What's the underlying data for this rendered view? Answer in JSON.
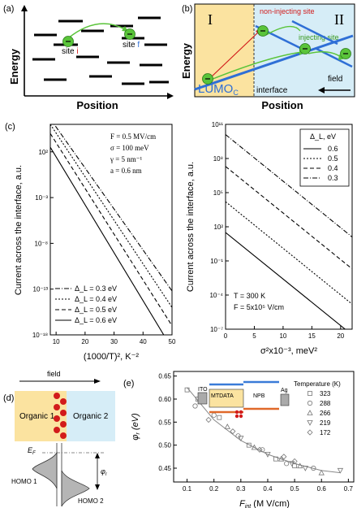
{
  "panels": {
    "a": {
      "label": "(a)",
      "xlabel": "Position",
      "ylabel": "Energy",
      "site_i": "site ",
      "site_i_sym": "i",
      "site_f": "site ",
      "site_f_sym": "f"
    },
    "b": {
      "label": "(b)",
      "xlabel": "Position",
      "ylabel": "Energy",
      "region_left": "I",
      "region_right": "II",
      "non_injecting": "non-injecting site",
      "injecting": "injecting site",
      "lumo": "LUMO",
      "lumo_sub": "C",
      "interface": "interface",
      "field": "field"
    },
    "c": {
      "label": "(c)",
      "left": {
        "ylabel": "Current across the interface, a.u.",
        "xlabel": "(1000/T)², K⁻²",
        "params": [
          "F = 0.5 MV/cm",
          "σ = 100 meV",
          "γ = 5 nm⁻¹",
          "a = 0.6 nm"
        ],
        "legend": [
          "Δ_L = 0.3 eV",
          "Δ_L = 0.4 eV",
          "Δ_L = 0.5 eV",
          "Δ_L = 0.6 eV"
        ],
        "yticks": [
          "10²",
          "10⁻³",
          "10⁻⁸",
          "10⁻¹³",
          "10⁻¹⁸"
        ],
        "xticks": [
          "10",
          "20",
          "30",
          "40",
          "50"
        ]
      },
      "right": {
        "ylabel": "Current across the interface, a.u.",
        "xlabel": "σ²x10⁻³, meV²",
        "legend_title": "Δ_L, eV",
        "legend": [
          "0.6",
          "0.5",
          "0.4",
          "0.3"
        ],
        "params": [
          "T = 300 K",
          "F = 5x10⁵ V/cm"
        ],
        "yticks": [
          "10¹¹",
          "10⁸",
          "10⁵",
          "10²",
          "10⁻¹",
          "10⁻⁴",
          "10⁻⁷"
        ],
        "xticks": [
          "0",
          "5",
          "10",
          "15",
          "20"
        ]
      }
    },
    "d": {
      "label": "(d)",
      "field": "field",
      "organic1": "Organic 1",
      "organic2": "Organic 2",
      "ef": "E_F",
      "homo1": "HOMO 1",
      "homo2": "HOMO 2",
      "phi": "φ_r"
    },
    "e": {
      "label": "(e)",
      "ylabel": "φ_r (eV)",
      "xlabel": "F_int (M V/cm)",
      "legend_title": "Temperature (K)",
      "temperatures": [
        "323",
        "288",
        "266",
        "219",
        "172"
      ],
      "device": [
        "ITO",
        "MTDATA",
        "NPB",
        "Ag"
      ],
      "yticks": [
        "0.45",
        "0.50",
        "0.55",
        "0.60",
        "0.65"
      ],
      "xticks": [
        "0.1",
        "0.2",
        "0.3",
        "0.4",
        "0.5",
        "0.6",
        "0.7"
      ]
    }
  },
  "colors": {
    "green": "#5ac43a",
    "blue": "#2f6fd6",
    "red": "#d21b1b",
    "yellow": "#fbe3a0",
    "lightblue": "#d6edf7",
    "orange": "#e0692a",
    "ptblue": "#3a7bd8"
  },
  "chart_data": [
    {
      "type": "line",
      "xlabel": "(1000/T)², K⁻²",
      "ylabel": "Current across the interface, a.u.",
      "xlim": [
        8,
        50
      ],
      "ylim_log10": [
        -18,
        5
      ],
      "series": [
        {
          "name": "Δ_L = 0.3 eV",
          "x": [
            8,
            50
          ],
          "log10_y": [
            5.6,
            -13.2
          ]
        },
        {
          "name": "Δ_L = 0.4 eV",
          "x": [
            8,
            50
          ],
          "log10_y": [
            5.0,
            -15.0
          ]
        },
        {
          "name": "Δ_L = 0.5 eV",
          "x": [
            8,
            50
          ],
          "log10_y": [
            4.0,
            -17.0
          ]
        },
        {
          "name": "Δ_L = 0.6 eV",
          "x": [
            8,
            50
          ],
          "log10_y": [
            2.5,
            -19.5
          ]
        }
      ]
    },
    {
      "type": "line",
      "xlabel": "σ²x10⁻³, meV²",
      "ylabel": "Current across the interface, a.u.",
      "xlim": [
        0,
        22
      ],
      "ylim_log10": [
        -7,
        11
      ],
      "series": [
        {
          "name": "0.6",
          "x": [
            0,
            22
          ],
          "log10_y": [
            1.5,
            -7.5
          ]
        },
        {
          "name": "0.5",
          "x": [
            0,
            22
          ],
          "log10_y": [
            4.2,
            -4.8
          ]
        },
        {
          "name": "0.4",
          "x": [
            0,
            22
          ],
          "log10_y": [
            7.3,
            -1.7
          ]
        },
        {
          "name": "0.3",
          "x": [
            0,
            22
          ],
          "log10_y": [
            10.1,
            1.1
          ]
        }
      ]
    },
    {
      "type": "scatter",
      "xlabel": "F_int (M V/cm)",
      "ylabel": "φ_r (eV)",
      "xlim": [
        0.05,
        0.72
      ],
      "ylim": [
        0.42,
        0.66
      ],
      "series": [
        {
          "name": "323",
          "x": [
            0.1,
            0.14,
            0.22,
            0.33,
            0.43,
            0.5
          ],
          "y": [
            0.62,
            0.6,
            0.56,
            0.5,
            0.47,
            0.455
          ]
        },
        {
          "name": "288",
          "x": [
            0.13,
            0.2,
            0.29,
            0.38,
            0.47,
            0.57
          ],
          "y": [
            0.585,
            0.565,
            0.52,
            0.49,
            0.46,
            0.45
          ]
        },
        {
          "name": "266",
          "x": [
            0.25,
            0.35,
            0.45,
            0.52,
            0.6
          ],
          "y": [
            0.54,
            0.495,
            0.47,
            0.455,
            0.44
          ]
        },
        {
          "name": "219",
          "x": [
            0.3,
            0.4,
            0.49,
            0.54,
            0.67
          ],
          "y": [
            0.515,
            0.48,
            0.46,
            0.45,
            0.445
          ]
        },
        {
          "name": "172",
          "x": [
            0.18,
            0.27,
            0.37,
            0.46,
            0.5
          ],
          "y": [
            0.555,
            0.53,
            0.49,
            0.475,
            0.465
          ]
        }
      ],
      "fit": {
        "x": [
          0.1,
          0.2,
          0.3,
          0.4,
          0.5,
          0.6,
          0.67
        ],
        "y": [
          0.625,
          0.555,
          0.51,
          0.48,
          0.46,
          0.445,
          0.44
        ]
      }
    }
  ]
}
